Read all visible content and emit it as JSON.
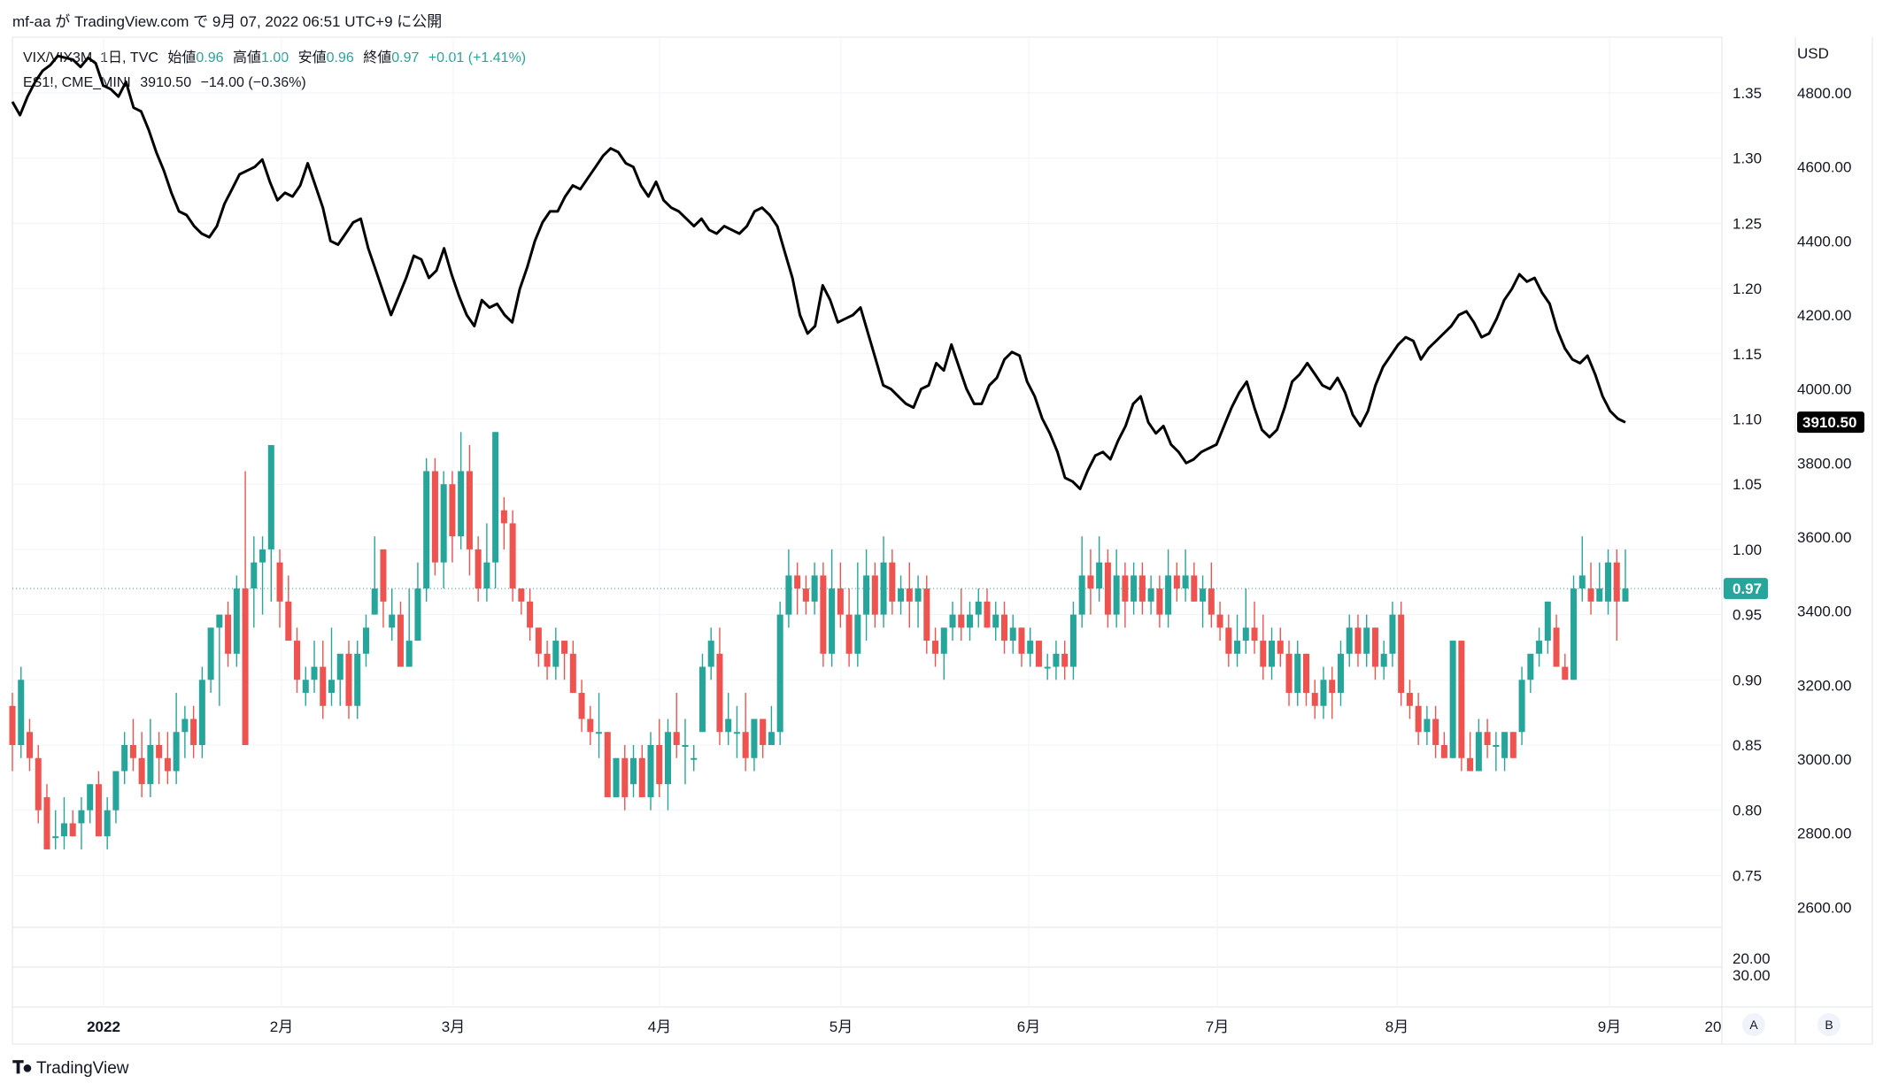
{
  "header": {
    "author": "mf-aa",
    "text_ga": "が",
    "site": "TradingView.com",
    "text_de": "で",
    "date": "9月 07, 2022 06:51 UTC+9",
    "text_ni": "に公開"
  },
  "legend": {
    "main": {
      "symbol": "VIX/VIX3M, 1日, TVC",
      "open_label": "始値",
      "open": "0.96",
      "high_label": "高値",
      "high": "1.00",
      "low_label": "安値",
      "low": "0.96",
      "close_label": "終値",
      "close": "0.97",
      "change": "+0.01 (+1.41%)"
    },
    "overlay": {
      "symbol": "ES1!, CME_MINI",
      "last": "3910.50",
      "change": "−14.00 (−0.36%)"
    }
  },
  "footer": {
    "brand": "TradingView"
  },
  "buttons": {
    "a": "A",
    "b": "B"
  },
  "colors": {
    "up": "#26a69a",
    "down": "#ef5350",
    "line": "#000000",
    "grid": "#f0f3fa"
  },
  "chart_data": {
    "type": "candlestick+line",
    "currency": "USD",
    "left_axis_ticks": [
      "1.35",
      "1.30",
      "1.25",
      "1.20",
      "1.15",
      "1.10",
      "1.05",
      "1.00",
      "0.95",
      "0.90",
      "0.85",
      "0.80",
      "0.75"
    ],
    "right_axis_ticks": [
      "4800.00",
      "4600.00",
      "4400.00",
      "4200.00",
      "4000.00",
      "3800.00",
      "3600.00",
      "3400.00",
      "3200.00",
      "3000.00",
      "2800.00",
      "2600.00"
    ],
    "sub_axis_ticks": [
      "20.00",
      "30.00"
    ],
    "x_ticks": [
      "2022",
      "2月",
      "3月",
      "4月",
      "5月",
      "6月",
      "7月",
      "8月",
      "9月",
      "20"
    ],
    "last_price_label": "0.97",
    "overlay_last_label": "3910.50",
    "candles": [
      [
        0.88,
        0.85,
        0.89,
        0.83
      ],
      [
        0.85,
        0.9,
        0.91,
        0.84
      ],
      [
        0.86,
        0.84,
        0.87,
        0.83
      ],
      [
        0.84,
        0.8,
        0.85,
        0.79
      ],
      [
        0.81,
        0.77,
        0.82,
        0.77
      ],
      [
        0.78,
        0.78,
        0.8,
        0.77
      ],
      [
        0.78,
        0.79,
        0.81,
        0.77
      ],
      [
        0.79,
        0.78,
        0.8,
        0.78
      ],
      [
        0.79,
        0.8,
        0.81,
        0.77
      ],
      [
        0.8,
        0.82,
        0.82,
        0.79
      ],
      [
        0.82,
        0.78,
        0.83,
        0.78
      ],
      [
        0.78,
        0.8,
        0.81,
        0.77
      ],
      [
        0.8,
        0.83,
        0.83,
        0.79
      ],
      [
        0.83,
        0.85,
        0.86,
        0.82
      ],
      [
        0.85,
        0.84,
        0.87,
        0.83
      ],
      [
        0.84,
        0.82,
        0.86,
        0.81
      ],
      [
        0.82,
        0.85,
        0.87,
        0.81
      ],
      [
        0.85,
        0.84,
        0.86,
        0.82
      ],
      [
        0.84,
        0.83,
        0.86,
        0.82
      ],
      [
        0.83,
        0.86,
        0.89,
        0.82
      ],
      [
        0.86,
        0.87,
        0.88,
        0.84
      ],
      [
        0.87,
        0.85,
        0.88,
        0.84
      ],
      [
        0.85,
        0.9,
        0.91,
        0.84
      ],
      [
        0.9,
        0.94,
        0.94,
        0.89
      ],
      [
        0.94,
        0.95,
        0.95,
        0.88
      ],
      [
        0.95,
        0.92,
        0.96,
        0.91
      ],
      [
        0.92,
        0.97,
        0.98,
        0.91
      ],
      [
        0.97,
        0.85,
        1.06,
        0.85
      ],
      [
        0.97,
        0.99,
        1.01,
        0.94
      ],
      [
        0.99,
        1.0,
        1.01,
        0.95
      ],
      [
        1.0,
        1.08,
        1.08,
        0.96
      ],
      [
        0.99,
        0.96,
        1.0,
        0.94
      ],
      [
        0.96,
        0.93,
        0.98,
        0.93
      ],
      [
        0.93,
        0.9,
        0.94,
        0.89
      ],
      [
        0.89,
        0.9,
        0.91,
        0.88
      ],
      [
        0.9,
        0.91,
        0.93,
        0.89
      ],
      [
        0.91,
        0.88,
        0.93,
        0.87
      ],
      [
        0.89,
        0.9,
        0.94,
        0.88
      ],
      [
        0.9,
        0.92,
        0.92,
        0.88
      ],
      [
        0.92,
        0.88,
        0.93,
        0.87
      ],
      [
        0.88,
        0.92,
        0.93,
        0.87
      ],
      [
        0.92,
        0.94,
        0.95,
        0.91
      ],
      [
        0.95,
        0.97,
        1.01,
        0.95
      ],
      [
        1.0,
        0.96,
        1.0,
        0.94
      ],
      [
        0.94,
        0.95,
        0.97,
        0.93
      ],
      [
        0.95,
        0.91,
        0.96,
        0.91
      ],
      [
        0.91,
        0.93,
        0.97,
        0.91
      ],
      [
        0.93,
        0.97,
        0.99,
        0.93
      ],
      [
        0.97,
        1.06,
        1.07,
        0.96
      ],
      [
        1.06,
        0.99,
        1.07,
        0.98
      ],
      [
        0.99,
        1.05,
        1.06,
        0.97
      ],
      [
        1.05,
        1.01,
        1.06,
        0.99
      ],
      [
        1.01,
        1.06,
        1.09,
        1.0
      ],
      [
        1.06,
        1.0,
        1.08,
        0.98
      ],
      [
        1.0,
        0.97,
        1.01,
        0.96
      ],
      [
        0.97,
        0.99,
        1.02,
        0.96
      ],
      [
        0.99,
        1.09,
        1.09,
        0.97
      ],
      [
        1.03,
        1.02,
        1.04,
        1.0
      ],
      [
        1.02,
        0.97,
        1.03,
        0.96
      ],
      [
        0.97,
        0.96,
        0.97,
        0.95
      ],
      [
        0.96,
        0.94,
        0.97,
        0.93
      ],
      [
        0.94,
        0.92,
        0.94,
        0.91
      ],
      [
        0.92,
        0.91,
        0.93,
        0.9
      ],
      [
        0.91,
        0.93,
        0.94,
        0.9
      ],
      [
        0.93,
        0.92,
        0.93,
        0.9
      ],
      [
        0.92,
        0.89,
        0.93,
        0.89
      ],
      [
        0.89,
        0.87,
        0.9,
        0.86
      ],
      [
        0.87,
        0.86,
        0.88,
        0.85
      ],
      [
        0.86,
        0.86,
        0.89,
        0.84
      ],
      [
        0.86,
        0.81,
        0.86,
        0.81
      ],
      [
        0.81,
        0.84,
        0.84,
        0.81
      ],
      [
        0.84,
        0.81,
        0.85,
        0.8
      ],
      [
        0.82,
        0.84,
        0.85,
        0.81
      ],
      [
        0.84,
        0.81,
        0.85,
        0.81
      ],
      [
        0.81,
        0.85,
        0.86,
        0.8
      ],
      [
        0.85,
        0.82,
        0.87,
        0.81
      ],
      [
        0.82,
        0.86,
        0.87,
        0.8
      ],
      [
        0.86,
        0.85,
        0.89,
        0.84
      ],
      [
        0.85,
        0.85,
        0.87,
        0.82
      ],
      [
        0.84,
        0.84,
        0.85,
        0.83
      ],
      [
        0.86,
        0.91,
        0.92,
        0.86
      ],
      [
        0.91,
        0.93,
        0.94,
        0.9
      ],
      [
        0.92,
        0.86,
        0.94,
        0.85
      ],
      [
        0.86,
        0.87,
        0.89,
        0.85
      ],
      [
        0.86,
        0.86,
        0.88,
        0.84
      ],
      [
        0.86,
        0.84,
        0.89,
        0.83
      ],
      [
        0.84,
        0.87,
        0.87,
        0.83
      ],
      [
        0.87,
        0.85,
        0.87,
        0.84
      ],
      [
        0.85,
        0.86,
        0.88,
        0.85
      ],
      [
        0.86,
        0.95,
        0.96,
        0.85
      ],
      [
        0.95,
        0.98,
        1.0,
        0.94
      ],
      [
        0.98,
        0.97,
        0.99,
        0.95
      ],
      [
        0.97,
        0.96,
        0.98,
        0.95
      ],
      [
        0.96,
        0.98,
        0.99,
        0.95
      ],
      [
        0.98,
        0.92,
        0.99,
        0.91
      ],
      [
        0.92,
        0.97,
        1.0,
        0.91
      ],
      [
        0.97,
        0.95,
        0.99,
        0.94
      ],
      [
        0.95,
        0.92,
        0.97,
        0.91
      ],
      [
        0.92,
        0.95,
        0.99,
        0.91
      ],
      [
        0.95,
        0.98,
        1.0,
        0.93
      ],
      [
        0.98,
        0.95,
        0.99,
        0.94
      ],
      [
        0.95,
        0.99,
        1.01,
        0.94
      ],
      [
        0.99,
        0.96,
        1.0,
        0.95
      ],
      [
        0.96,
        0.97,
        0.98,
        0.95
      ],
      [
        0.97,
        0.96,
        0.99,
        0.94
      ],
      [
        0.96,
        0.97,
        0.98,
        0.94
      ],
      [
        0.97,
        0.93,
        0.98,
        0.92
      ],
      [
        0.93,
        0.92,
        0.94,
        0.91
      ],
      [
        0.92,
        0.94,
        0.94,
        0.9
      ],
      [
        0.94,
        0.95,
        0.96,
        0.93
      ],
      [
        0.95,
        0.94,
        0.97,
        0.93
      ],
      [
        0.94,
        0.95,
        0.96,
        0.93
      ],
      [
        0.95,
        0.96,
        0.97,
        0.94
      ],
      [
        0.96,
        0.94,
        0.97,
        0.94
      ],
      [
        0.94,
        0.95,
        0.96,
        0.93
      ],
      [
        0.95,
        0.93,
        0.96,
        0.92
      ],
      [
        0.93,
        0.94,
        0.95,
        0.92
      ],
      [
        0.94,
        0.92,
        0.94,
        0.91
      ],
      [
        0.92,
        0.93,
        0.94,
        0.91
      ],
      [
        0.93,
        0.91,
        0.93,
        0.91
      ],
      [
        0.91,
        0.91,
        0.92,
        0.9
      ],
      [
        0.91,
        0.92,
        0.93,
        0.9
      ],
      [
        0.92,
        0.91,
        0.93,
        0.9
      ],
      [
        0.91,
        0.95,
        0.96,
        0.9
      ],
      [
        0.95,
        0.98,
        1.01,
        0.94
      ],
      [
        0.98,
        0.97,
        1.0,
        0.95
      ],
      [
        0.97,
        0.99,
        1.01,
        0.96
      ],
      [
        0.99,
        0.95,
        1.0,
        0.94
      ],
      [
        0.95,
        0.98,
        1.0,
        0.94
      ],
      [
        0.98,
        0.96,
        0.99,
        0.94
      ],
      [
        0.96,
        0.98,
        0.99,
        0.95
      ],
      [
        0.98,
        0.96,
        0.99,
        0.95
      ],
      [
        0.96,
        0.97,
        0.98,
        0.95
      ],
      [
        0.97,
        0.95,
        0.98,
        0.94
      ],
      [
        0.95,
        0.98,
        1.0,
        0.94
      ],
      [
        0.98,
        0.97,
        0.99,
        0.96
      ],
      [
        0.97,
        0.98,
        1.0,
        0.96
      ],
      [
        0.98,
        0.96,
        0.99,
        0.96
      ],
      [
        0.96,
        0.97,
        0.98,
        0.94
      ],
      [
        0.97,
        0.95,
        0.99,
        0.94
      ],
      [
        0.95,
        0.94,
        0.96,
        0.93
      ],
      [
        0.94,
        0.92,
        0.95,
        0.91
      ],
      [
        0.92,
        0.93,
        0.95,
        0.91
      ],
      [
        0.93,
        0.94,
        0.97,
        0.92
      ],
      [
        0.94,
        0.93,
        0.96,
        0.92
      ],
      [
        0.93,
        0.91,
        0.95,
        0.9
      ],
      [
        0.91,
        0.93,
        0.94,
        0.9
      ],
      [
        0.93,
        0.92,
        0.94,
        0.91
      ],
      [
        0.92,
        0.89,
        0.93,
        0.88
      ],
      [
        0.89,
        0.92,
        0.93,
        0.88
      ],
      [
        0.92,
        0.89,
        0.92,
        0.88
      ],
      [
        0.89,
        0.88,
        0.9,
        0.87
      ],
      [
        0.88,
        0.9,
        0.91,
        0.87
      ],
      [
        0.9,
        0.89,
        0.91,
        0.87
      ],
      [
        0.89,
        0.92,
        0.93,
        0.88
      ],
      [
        0.92,
        0.94,
        0.95,
        0.91
      ],
      [
        0.94,
        0.92,
        0.95,
        0.91
      ],
      [
        0.92,
        0.94,
        0.95,
        0.91
      ],
      [
        0.94,
        0.91,
        0.94,
        0.9
      ],
      [
        0.91,
        0.92,
        0.93,
        0.9
      ],
      [
        0.92,
        0.95,
        0.96,
        0.91
      ],
      [
        0.95,
        0.89,
        0.96,
        0.88
      ],
      [
        0.89,
        0.88,
        0.9,
        0.87
      ],
      [
        0.88,
        0.86,
        0.89,
        0.85
      ],
      [
        0.86,
        0.87,
        0.88,
        0.85
      ],
      [
        0.87,
        0.85,
        0.88,
        0.84
      ],
      [
        0.85,
        0.84,
        0.86,
        0.84
      ],
      [
        0.84,
        0.93,
        0.93,
        0.84
      ],
      [
        0.93,
        0.84,
        0.93,
        0.83
      ],
      [
        0.84,
        0.83,
        0.86,
        0.83
      ],
      [
        0.83,
        0.86,
        0.87,
        0.83
      ],
      [
        0.86,
        0.85,
        0.87,
        0.84
      ],
      [
        0.85,
        0.85,
        0.86,
        0.83
      ],
      [
        0.84,
        0.86,
        0.86,
        0.83
      ],
      [
        0.86,
        0.84,
        0.86,
        0.84
      ],
      [
        0.86,
        0.9,
        0.91,
        0.85
      ],
      [
        0.9,
        0.92,
        0.92,
        0.89
      ],
      [
        0.92,
        0.93,
        0.94,
        0.91
      ],
      [
        0.93,
        0.96,
        0.96,
        0.92
      ],
      [
        0.94,
        0.91,
        0.95,
        0.91
      ],
      [
        0.91,
        0.9,
        0.92,
        0.9
      ],
      [
        0.9,
        0.97,
        0.98,
        0.9
      ],
      [
        0.97,
        0.98,
        1.01,
        0.96
      ],
      [
        0.97,
        0.96,
        0.99,
        0.95
      ],
      [
        0.96,
        0.97,
        0.99,
        0.96
      ],
      [
        0.96,
        0.99,
        1.0,
        0.95
      ],
      [
        0.99,
        0.96,
        1.0,
        0.93
      ],
      [
        0.96,
        0.97,
        1.0,
        0.96
      ]
    ],
    "overlay_line": {
      "name": "ES1!",
      "values": [
        4776,
        4740,
        4790,
        4830,
        4860,
        4875,
        4900,
        4895,
        4890,
        4870,
        4895,
        4880,
        4820,
        4810,
        4790,
        4830,
        4760,
        4750,
        4700,
        4640,
        4590,
        4530,
        4480,
        4470,
        4440,
        4420,
        4410,
        4440,
        4500,
        4540,
        4580,
        4590,
        4600,
        4620,
        4560,
        4510,
        4530,
        4520,
        4550,
        4610,
        4550,
        4490,
        4400,
        4390,
        4420,
        4450,
        4460,
        4380,
        4320,
        4260,
        4200,
        4250,
        4300,
        4360,
        4350,
        4300,
        4320,
        4380,
        4310,
        4250,
        4200,
        4170,
        4240,
        4220,
        4230,
        4200,
        4180,
        4270,
        4330,
        4400,
        4450,
        4480,
        4480,
        4520,
        4550,
        4540,
        4570,
        4600,
        4630,
        4650,
        4640,
        4610,
        4600,
        4550,
        4520,
        4560,
        4510,
        4490,
        4480,
        4460,
        4440,
        4460,
        4430,
        4420,
        4440,
        4430,
        4420,
        4440,
        4480,
        4490,
        4470,
        4440,
        4370,
        4300,
        4200,
        4150,
        4170,
        4280,
        4240,
        4180,
        4190,
        4200,
        4220,
        4150,
        4080,
        4010,
        4000,
        3980,
        3960,
        3950,
        4000,
        4010,
        4070,
        4050,
        4120,
        4060,
        4000,
        3960,
        3960,
        4010,
        4030,
        4080,
        4100,
        4090,
        4020,
        3980,
        3920,
        3880,
        3830,
        3760,
        3750,
        3730,
        3780,
        3820,
        3830,
        3810,
        3860,
        3900,
        3960,
        3980,
        3910,
        3880,
        3900,
        3850,
        3830,
        3800,
        3810,
        3830,
        3840,
        3850,
        3900,
        3950,
        3990,
        4020,
        3950,
        3890,
        3870,
        3890,
        3950,
        4020,
        4040,
        4070,
        4040,
        4010,
        4000,
        4030,
        3990,
        3930,
        3900,
        3940,
        4010,
        4060,
        4090,
        4120,
        4140,
        4130,
        4080,
        4110,
        4130,
        4150,
        4170,
        4200,
        4210,
        4180,
        4140,
        4150,
        4190,
        4240,
        4270,
        4310,
        4290,
        4300,
        4260,
        4230,
        4160,
        4110,
        4080,
        4070,
        4090,
        4040,
        3980,
        3940,
        3920,
        3910
      ]
    }
  }
}
